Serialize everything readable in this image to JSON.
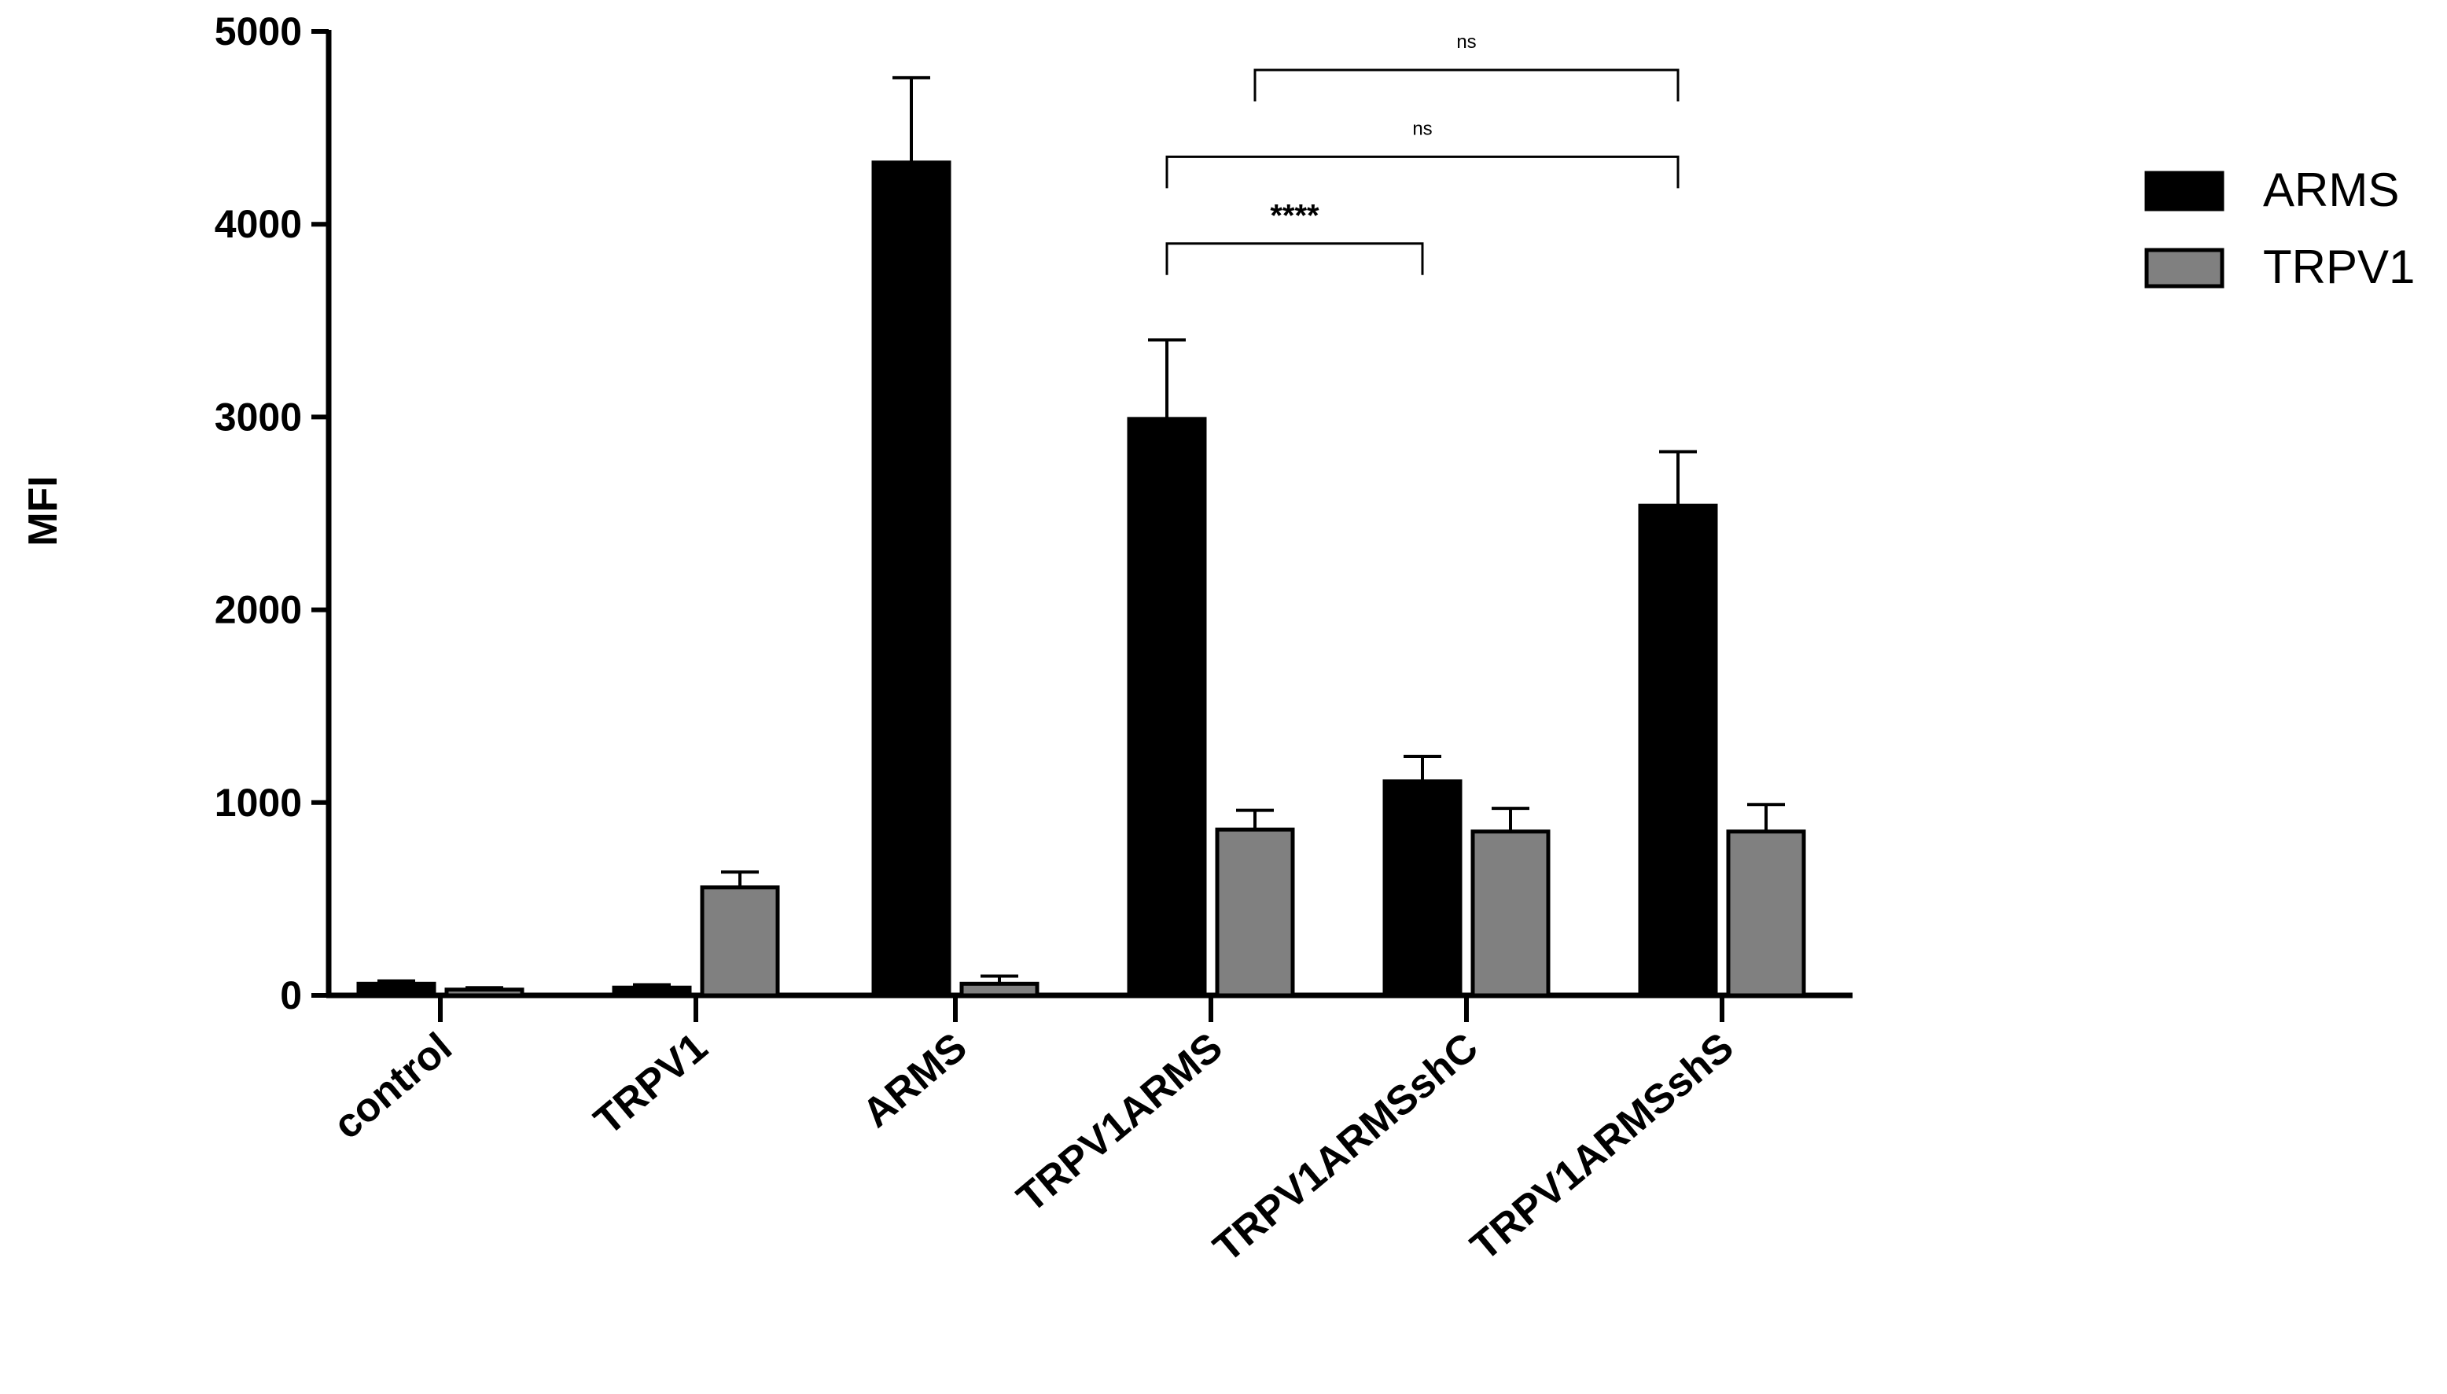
{
  "chart_data": {
    "type": "bar",
    "categories": [
      "control",
      "TRPV1",
      "ARMS",
      "TRPV1ARMS",
      "TRPV1ARMSshC",
      "TRPV1ARMSshS"
    ],
    "series": [
      {
        "name": "ARMS",
        "color": "#000000",
        "values": [
          60,
          40,
          4320,
          2990,
          1110,
          2540
        ],
        "errors": [
          15,
          15,
          440,
          410,
          130,
          280
        ]
      },
      {
        "name": "TRPV1",
        "color": "#808080",
        "values": [
          30,
          560,
          60,
          860,
          850,
          850
        ],
        "errors": [
          10,
          80,
          40,
          100,
          120,
          140
        ]
      }
    ],
    "title": "",
    "xlabel": "",
    "ylabel": "MFI",
    "ylim": [
      0,
      5000
    ],
    "yticks": [
      0,
      1000,
      2000,
      3000,
      4000,
      5000
    ],
    "legend": "top-right",
    "significance": [
      {
        "label": "ns",
        "left": {
          "category": 3,
          "series": 1
        },
        "right": {
          "category": 5,
          "series": 0
        },
        "level": 4800
      },
      {
        "label": "ns",
        "left": {
          "category": 3,
          "series": 0
        },
        "right": {
          "category": 5,
          "series": 0
        },
        "level": 4350
      },
      {
        "label": "****",
        "left": {
          "category": 3,
          "series": 0
        },
        "right": {
          "category": 4,
          "series": 0
        },
        "level": 3900
      }
    ]
  }
}
